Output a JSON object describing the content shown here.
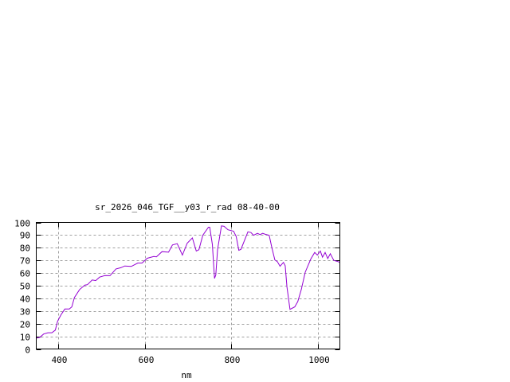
{
  "chart_data": {
    "type": "line",
    "title": "sr_2026_046_TGF__y03_r_rad 08-40-00",
    "xlabel": "nm",
    "ylabel": "",
    "xlim": [
      350,
      1050
    ],
    "ylim": [
      0,
      100
    ],
    "xticks": [
      400,
      600,
      800,
      1000
    ],
    "yticks": [
      0,
      10,
      20,
      30,
      40,
      50,
      60,
      70,
      80,
      90,
      100
    ],
    "grid": true,
    "line_color": "#9400d3",
    "series": [
      {
        "x": [
          351,
          358,
          367,
          377,
          386,
          394,
          399,
          407,
          416,
          426,
          432,
          438,
          450,
          462,
          468,
          479,
          487,
          496,
          508,
          520,
          534,
          545,
          554,
          569,
          584,
          594,
          606,
          621,
          627,
          640,
          655,
          664,
          675,
          687,
          698,
          710,
          719,
          725,
          734,
          747,
          750,
          756,
          761,
          764,
          768,
          777,
          783,
          792,
          805,
          811,
          817,
          822,
          838,
          845,
          851,
          860,
          866,
          872,
          878,
          887,
          893,
          900,
          906,
          912,
          920,
          924,
          928,
          935,
          946,
          953,
          961,
          970,
          983,
          992,
          998,
          1005,
          1010,
          1016,
          1022,
          1028,
          1036,
          1046,
          1050
        ],
        "y": [
          8.6,
          9.2,
          11.8,
          12.8,
          12.8,
          14.9,
          21.8,
          27,
          31.6,
          31.6,
          33.3,
          40.7,
          47,
          50.5,
          50.8,
          54.5,
          54,
          56.8,
          58,
          57.9,
          63.3,
          64.2,
          65.6,
          65.2,
          67.9,
          67.9,
          71.7,
          73.1,
          72.8,
          76.9,
          76.5,
          82.2,
          83.2,
          74.2,
          83.6,
          87.8,
          77.4,
          78.4,
          89.9,
          96.2,
          96.2,
          82.6,
          55.8,
          58.5,
          78.4,
          97.3,
          96.9,
          94.2,
          93.1,
          88.9,
          78,
          78.8,
          92.6,
          92,
          89.9,
          91.4,
          90.4,
          91.4,
          90.6,
          89.9,
          80.5,
          70.4,
          69,
          65.4,
          68.4,
          65.8,
          49,
          31.3,
          33.3,
          37.5,
          47,
          60.6,
          71.1,
          76.3,
          74.2,
          77.4,
          72.5,
          76.3,
          71.5,
          75.3,
          70,
          69,
          68.4
        ]
      }
    ]
  }
}
